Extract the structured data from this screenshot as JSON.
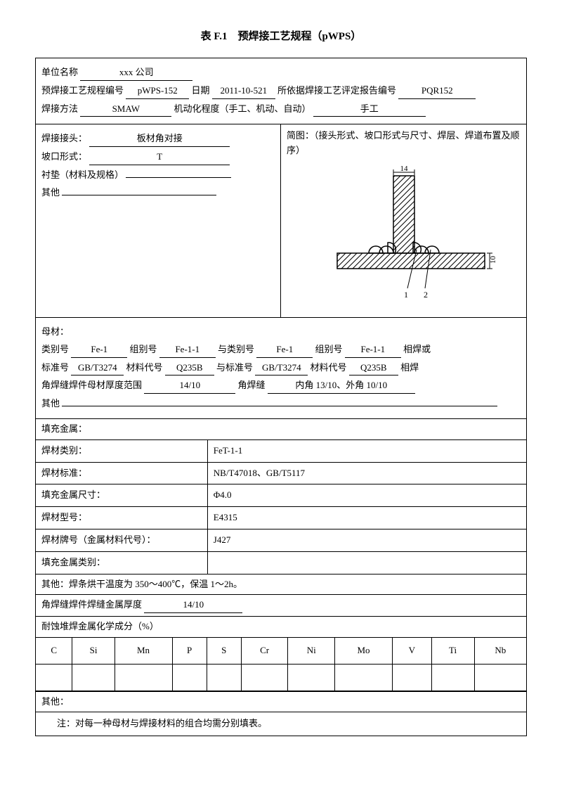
{
  "title": "表 F.1　预焊接工艺规程（pWPS）",
  "header": {
    "org_label": "单位名称",
    "org_value": "xxx 公司",
    "spec_no_label": "预焊接工艺规程编号",
    "spec_no": "pWPS-152",
    "date_label": "日期",
    "date": "2011-10-521",
    "pqr_label": "所依据焊接工艺评定报告编号",
    "pqr": "PQR152",
    "method_label": "焊接方法",
    "method": "SMAW",
    "mech_label": "机动化程度（手工、机动、自动）",
    "mech": "手工"
  },
  "joint": {
    "joint_label": "焊接接头：",
    "joint_value": "板材角对接",
    "groove_label": "坡口形式：",
    "groove_value": "T",
    "backing_label": "衬垫（材料及规格）",
    "other_label": "其他",
    "diagram_label": "简图：（接头形式、坡口形式与尺寸、焊层、焊道布置及顺序）",
    "dim_top": "14",
    "dim_right": "10",
    "mark1": "1",
    "mark2": "2"
  },
  "base": {
    "heading": "母材：",
    "cat_label": "类别号",
    "cat1": "Fe-1",
    "group_label": "组别号",
    "group1": "Fe-1-1",
    "with_cat_label": "与类别号",
    "cat2": "Fe-1",
    "group2": "Fe-1-1",
    "suffix1": "相焊或",
    "std_label": "标准号",
    "std1": "GB/T3274",
    "mat_label": "材料代号",
    "mat1": "Q235B",
    "with_std_label": "与标准号",
    "std2": "GB/T3274",
    "mat2": "Q235B",
    "suffix2": "相焊",
    "thick_label": "角焊缝焊件母材厚度范围",
    "thick_value": "14/10",
    "fillet_label": "角焊缝",
    "fillet_value": "内角 13/10、外角 10/10",
    "other_label": "其他"
  },
  "filler": {
    "heading": "填充金属：",
    "rows": [
      {
        "label": "焊材类别：",
        "value": "FeT-1-1"
      },
      {
        "label": "焊材标准：",
        "value": "NB/T47018、GB/T5117"
      },
      {
        "label": "填充金属尺寸：",
        "value": "Φ4.0"
      },
      {
        "label": "焊材型号：",
        "value": "E4315"
      },
      {
        "label": "焊材牌号（金属材料代号）：",
        "value": "J427"
      },
      {
        "label": "填充金属类别：",
        "value": ""
      }
    ],
    "other": "其他：焊条烘干温度为 350～400℃，保温 1～2h。",
    "weld_thick_label": "角焊缝焊件焊缝金属厚度",
    "weld_thick_value": "14/10"
  },
  "chem": {
    "heading": "耐蚀堆焊金属化学成分（%）",
    "cols": [
      "C",
      "Si",
      "Mn",
      "P",
      "S",
      "Cr",
      "Ni",
      "Mo",
      "V",
      "Ti",
      "Nb"
    ]
  },
  "footer": {
    "other": "其他：",
    "note": "注：对每一种母材与焊接材料的组合均需分别填表。"
  }
}
